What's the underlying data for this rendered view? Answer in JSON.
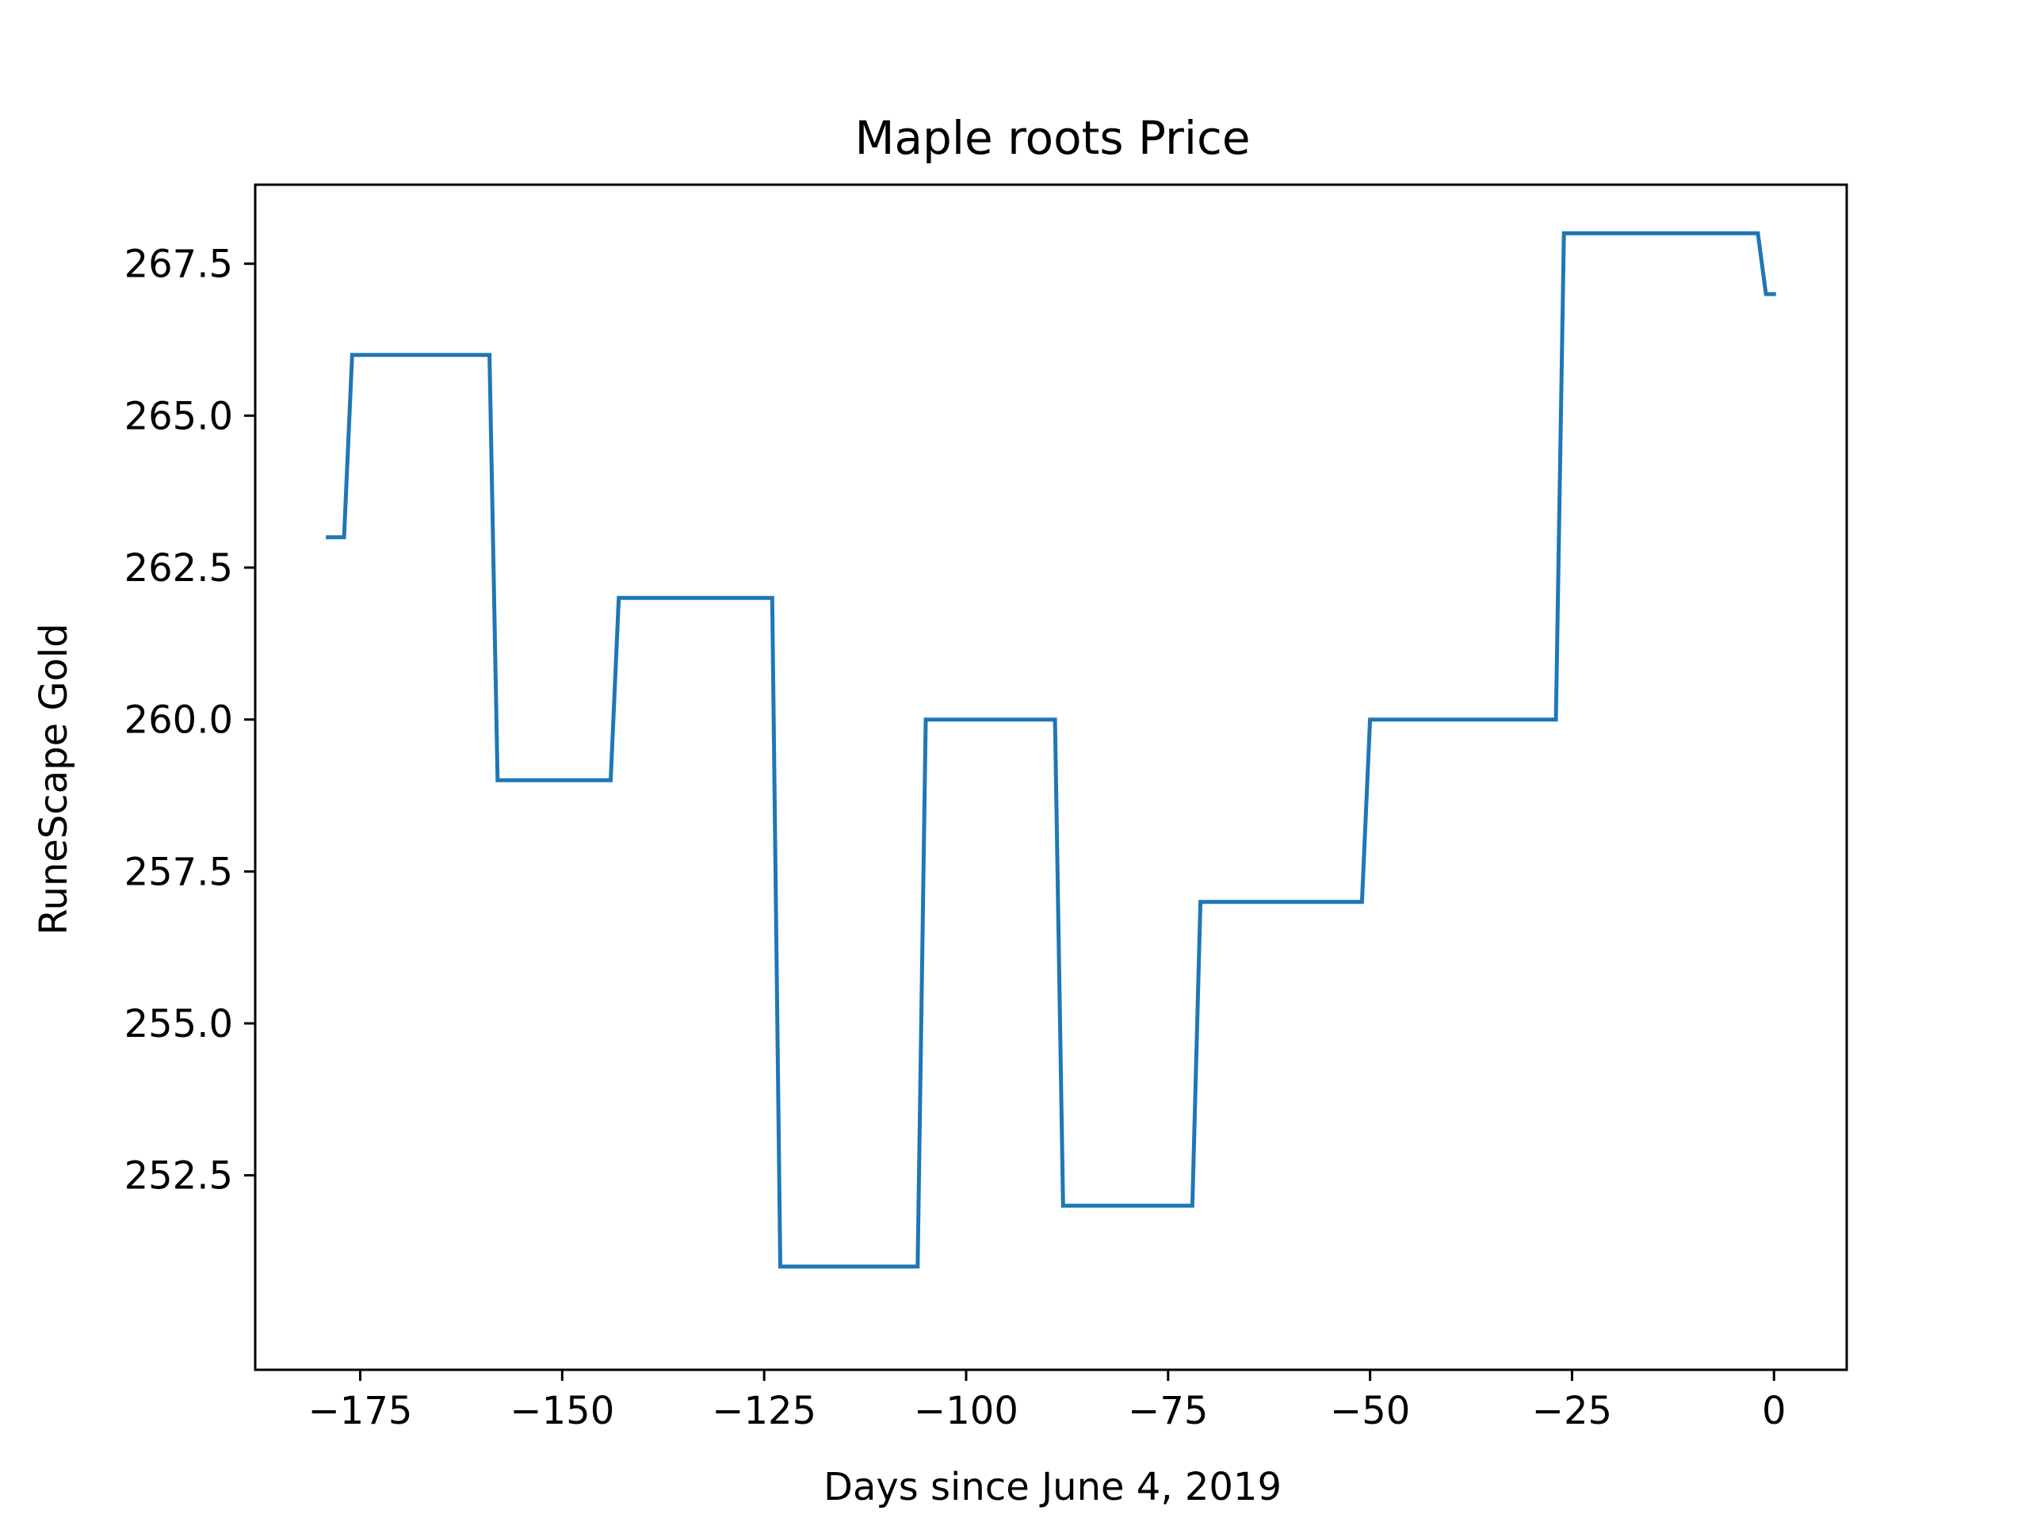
{
  "chart_data": {
    "type": "line",
    "title": "Maple roots Price",
    "xlabel": "Days since June 4, 2019",
    "ylabel": "RuneScape Gold",
    "xlim": [
      -188,
      9
    ],
    "ylim": [
      249.3,
      268.8
    ],
    "x_ticks": [
      -175,
      -150,
      -125,
      -100,
      -75,
      -50,
      -25,
      0
    ],
    "x_tick_labels": [
      "−175",
      "−150",
      "−125",
      "−100",
      "−75",
      "−50",
      "−25",
      "0"
    ],
    "y_ticks": [
      252.5,
      255.0,
      257.5,
      260.0,
      262.5,
      265.0,
      267.5
    ],
    "y_tick_labels": [
      "252.5",
      "255.0",
      "257.5",
      "260.0",
      "262.5",
      "265.0",
      "267.5"
    ],
    "grid": false,
    "line_color": "#1f77b4",
    "series": [
      {
        "x": [
          -179,
          -178,
          -177,
          -176,
          -159,
          -158,
          -144,
          -143,
          -124,
          -123,
          -106,
          -105,
          -89,
          -88,
          -72,
          -71,
          -51,
          -50,
          -27,
          -26,
          -2,
          -1,
          0
        ],
        "y": [
          263,
          263,
          263,
          266,
          266,
          259,
          259,
          262,
          262,
          251,
          251,
          260,
          260,
          252,
          252,
          257,
          257,
          260,
          260,
          268,
          268,
          267,
          267
        ]
      }
    ]
  }
}
